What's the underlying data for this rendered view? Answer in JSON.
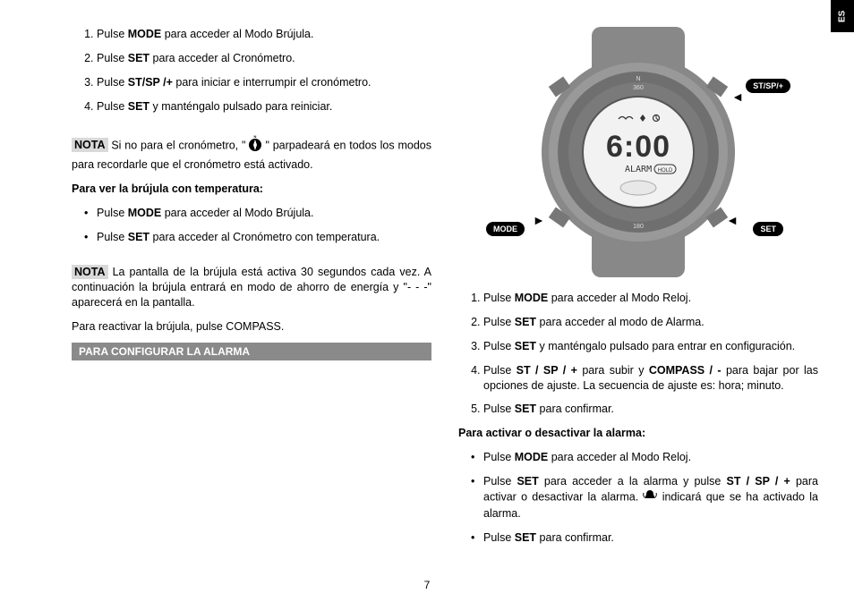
{
  "lang_tab": "ES",
  "left": {
    "steps1": [
      "Pulse <b>MODE</b> para acceder al Modo Brújula.",
      "Pulse <b>SET</b> para acceder al Cronómetro.",
      "Pulse <b>ST/SP /+</b> para iniciar e interrumpir el cronómetro.",
      "Pulse <b>SET</b> y manténgalo pulsado para reiniciar."
    ],
    "nota1_label": "NOTA",
    "nota1_before": "Si no para el cronómetro, \"",
    "nota1_after": "\" parpadeará en todos los modos para recordarle que el cronómetro está activado.",
    "sub1_heading": "Para ver la brújula con temperatura:",
    "bullets1": [
      "Pulse <b>MODE</b> para acceder al Modo Brújula.",
      "Pulse <b>SET</b> para acceder al Cronómetro con temperatura."
    ],
    "nota2_label": "NOTA",
    "nota2_text": "La pantalla de la brújula está activa 30 segundos cada vez. A continuación la brújula entrará en modo de ahorro de energía y \"- - -\" aparecerá en la pantalla.",
    "reactivate": "Para reactivar la brújula, pulse COMPASS.",
    "section_bar": "PARA CONFIGURAR LA ALARMA"
  },
  "watch": {
    "btn_tr": "ST/SP/+",
    "btn_bl": "MODE",
    "btn_br": "SET",
    "time_digits": "6:00",
    "alarm_text": "ALARM",
    "bezel_top": "360",
    "bezel_bottom": "180",
    "bezel_n": "N"
  },
  "right": {
    "steps2": [
      "Pulse <b>MODE</b> para acceder al Modo Reloj.",
      "Pulse <b>SET</b> para acceder al modo de Alarma.",
      "Pulse <b>SET</b> y manténgalo pulsado para entrar en configuración.",
      "Pulse <b>ST / SP / +</b> para subir y <b>COMPASS / -</b> para bajar por las opciones de ajuste. La secuencia de ajuste es: hora; minuto.",
      "Pulse <b>SET</b> para confirmar."
    ],
    "sub2_heading": "Para activar o desactivar la alarma:",
    "bullets2_a": "Pulse <b>MODE</b> para acceder al Modo Reloj.",
    "bullets2_b_before": "Pulse <b>SET</b> para acceder a la alarma y pulse <b>ST / SP / +</b> para activar o desactivar la alarma. ",
    "bullets2_b_after": " indicará que se ha activado la alarma.",
    "bullets2_c": "Pulse <b>SET</b> para confirmar."
  },
  "page": "7"
}
